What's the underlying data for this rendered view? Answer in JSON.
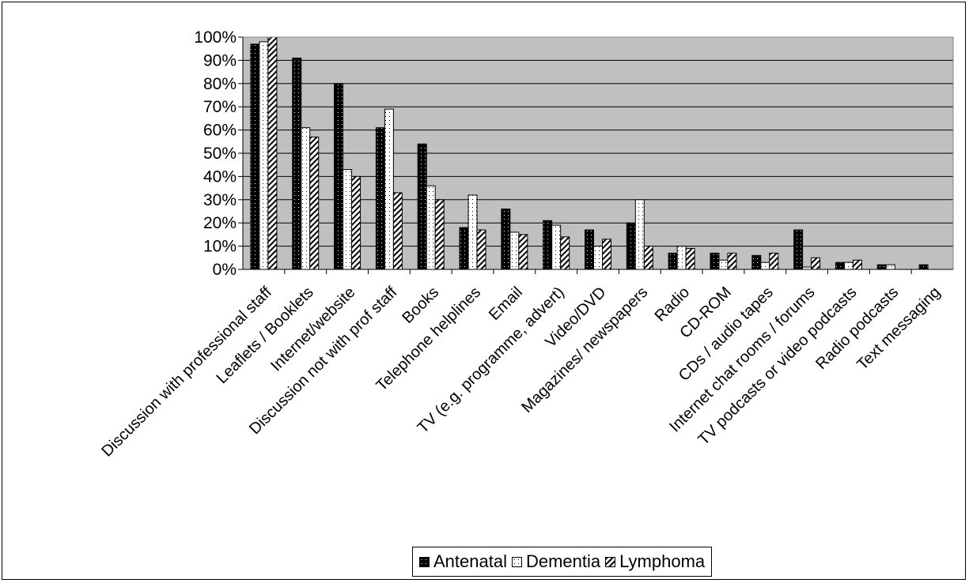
{
  "chart_data": {
    "type": "bar",
    "categories": [
      "Discussion with professional staff",
      "Leaflets / Booklets",
      "Internet/website",
      "Discussion not with prof staff",
      "Books",
      "Telephone helplines",
      "Email",
      "TV (e.g. programme, advert)",
      "Video/DVD",
      "Magazines/ newspapers",
      "Radio",
      "CD-ROM",
      "CDs / audio tapes",
      "Internet chat rooms / forums",
      "TV podcasts or video podcasts",
      "Radio podcasts",
      "Text messaging"
    ],
    "series": [
      {
        "name": "Antenatal",
        "values": [
          97,
          91,
          80,
          61,
          54,
          18,
          26,
          21,
          17,
          20,
          7,
          7,
          6,
          17,
          3,
          2,
          2
        ]
      },
      {
        "name": "Dementia",
        "values": [
          98,
          61,
          43,
          69,
          36,
          32,
          16,
          19,
          10,
          30,
          10,
          4,
          3,
          1,
          3,
          2,
          0
        ]
      },
      {
        "name": "Lymphoma",
        "values": [
          100,
          57,
          40,
          33,
          30,
          17,
          15,
          14,
          13,
          10,
          9,
          7,
          7,
          5,
          4,
          0,
          0
        ]
      }
    ],
    "yticks": [
      "0%",
      "10%",
      "20%",
      "30%",
      "40%",
      "50%",
      "60%",
      "70%",
      "80%",
      "90%",
      "100%"
    ],
    "ylim": [
      0,
      100
    ],
    "grid": true,
    "legend_position": "bottom",
    "colors": {
      "plot_background": "#c0c0c0",
      "Antenatal": "#000000",
      "Dementia": "#ffffff",
      "Lymphoma": "#ffffff"
    }
  }
}
